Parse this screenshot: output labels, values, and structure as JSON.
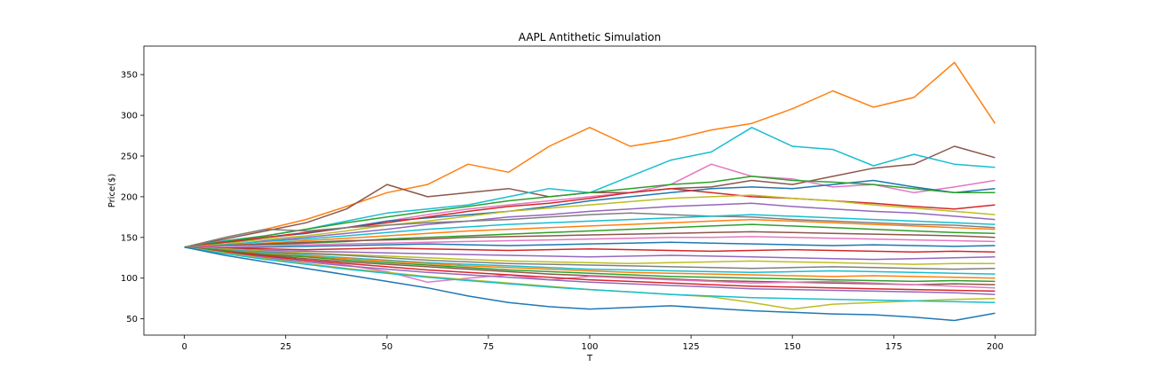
{
  "chart_data": {
    "type": "line",
    "title": "AAPL Antithetic Simulation",
    "xlabel": "T",
    "ylabel": "Price($)",
    "xlim": [
      -10,
      210
    ],
    "ylim": [
      30,
      385
    ],
    "x_ticks": [
      0,
      25,
      50,
      75,
      100,
      125,
      150,
      175,
      200
    ],
    "y_ticks": [
      50,
      100,
      150,
      200,
      250,
      300,
      350
    ],
    "grid": false,
    "legend": "none",
    "colors": [
      "#1f77b4",
      "#ff7f0e",
      "#2ca02c",
      "#d62728",
      "#9467bd",
      "#8c564b",
      "#e377c2",
      "#7f7f7f",
      "#bcbd22",
      "#17becf"
    ],
    "x": [
      0,
      10,
      20,
      30,
      40,
      50,
      60,
      70,
      80,
      90,
      100,
      110,
      120,
      130,
      140,
      150,
      160,
      170,
      180,
      190,
      200
    ],
    "series": [
      {
        "color": "#ff7f0e",
        "values": [
          138,
          150,
          160,
          172,
          188,
          205,
          215,
          240,
          230,
          262,
          285,
          262,
          270,
          282,
          290,
          308,
          330,
          310,
          322,
          365,
          290
        ]
      },
      {
        "color": "#8c564b",
        "values": [
          138,
          148,
          158,
          168,
          185,
          215,
          200,
          205,
          210,
          200,
          205,
          205,
          210,
          212,
          220,
          215,
          225,
          235,
          240,
          262,
          248
        ]
      },
      {
        "color": "#17becf",
        "values": [
          138,
          146,
          152,
          160,
          170,
          180,
          185,
          190,
          200,
          210,
          205,
          225,
          245,
          255,
          285,
          262,
          258,
          238,
          252,
          240,
          236
        ]
      },
      {
        "color": "#e377c2",
        "values": [
          138,
          144,
          150,
          155,
          162,
          170,
          178,
          185,
          190,
          195,
          200,
          205,
          215,
          240,
          225,
          222,
          212,
          215,
          205,
          212,
          220
        ]
      },
      {
        "color": "#1f77b4",
        "values": [
          138,
          142,
          150,
          155,
          162,
          170,
          174,
          178,
          182,
          188,
          195,
          200,
          205,
          210,
          212,
          210,
          215,
          220,
          212,
          205,
          210
        ]
      },
      {
        "color": "#2ca02c",
        "values": [
          138,
          145,
          152,
          160,
          168,
          175,
          182,
          188,
          195,
          200,
          205,
          210,
          215,
          218,
          225,
          220,
          218,
          215,
          210,
          205,
          205
        ]
      },
      {
        "color": "#d62728",
        "values": [
          138,
          144,
          150,
          156,
          162,
          168,
          175,
          182,
          188,
          192,
          198,
          205,
          210,
          205,
          200,
          198,
          195,
          192,
          188,
          185,
          190
        ]
      },
      {
        "color": "#bcbd22",
        "values": [
          138,
          142,
          148,
          152,
          158,
          165,
          170,
          176,
          182,
          186,
          190,
          194,
          198,
          200,
          202,
          198,
          195,
          190,
          186,
          182,
          178
        ]
      },
      {
        "color": "#9467bd",
        "values": [
          138,
          140,
          146,
          150,
          155,
          160,
          166,
          170,
          175,
          178,
          182,
          185,
          188,
          190,
          192,
          188,
          185,
          182,
          180,
          176,
          172
        ]
      },
      {
        "color": "#7f7f7f",
        "values": [
          138,
          150,
          160,
          158,
          162,
          165,
          168,
          170,
          172,
          175,
          178,
          180,
          178,
          176,
          175,
          172,
          170,
          168,
          166,
          165,
          162
        ]
      },
      {
        "color": "#17becf",
        "values": [
          138,
          141,
          145,
          148,
          152,
          156,
          160,
          163,
          166,
          168,
          170,
          172,
          174,
          176,
          178,
          176,
          174,
          172,
          170,
          168,
          166
        ]
      },
      {
        "color": "#ff7f0e",
        "values": [
          138,
          140,
          143,
          146,
          149,
          152,
          155,
          158,
          160,
          162,
          164,
          166,
          168,
          170,
          172,
          170,
          168,
          166,
          164,
          162,
          160
        ]
      },
      {
        "color": "#2ca02c",
        "values": [
          138,
          139,
          141,
          143,
          145,
          148,
          150,
          152,
          154,
          156,
          158,
          160,
          162,
          164,
          166,
          164,
          162,
          160,
          158,
          156,
          155
        ]
      },
      {
        "color": "#8c564b",
        "values": [
          138,
          140,
          142,
          144,
          146,
          147,
          148,
          150,
          151,
          152,
          153,
          154,
          155,
          156,
          157,
          156,
          155,
          154,
          153,
          152,
          150
        ]
      },
      {
        "color": "#e377c2",
        "values": [
          138,
          139,
          140,
          141,
          142,
          143,
          144,
          145,
          146,
          147,
          148,
          149,
          150,
          150,
          151,
          150,
          149,
          148,
          147,
          146,
          145
        ]
      },
      {
        "color": "#1f77b4",
        "values": [
          138,
          137,
          138,
          139,
          140,
          141,
          142,
          141,
          140,
          141,
          142,
          143,
          144,
          143,
          142,
          141,
          140,
          141,
          140,
          139,
          140
        ]
      },
      {
        "color": "#d62728",
        "values": [
          138,
          137,
          136,
          135,
          136,
          137,
          136,
          135,
          134,
          135,
          136,
          135,
          134,
          133,
          134,
          135,
          134,
          133,
          132,
          133,
          132
        ]
      },
      {
        "color": "#9467bd",
        "values": [
          138,
          136,
          134,
          133,
          132,
          131,
          130,
          129,
          128,
          127,
          126,
          127,
          128,
          127,
          126,
          125,
          124,
          123,
          124,
          125,
          126
        ]
      },
      {
        "color": "#bcbd22",
        "values": [
          138,
          136,
          133,
          131,
          129,
          127,
          125,
          123,
          121,
          120,
          119,
          118,
          119,
          120,
          121,
          120,
          119,
          118,
          117,
          118,
          118
        ]
      },
      {
        "color": "#7f7f7f",
        "values": [
          138,
          135,
          132,
          130,
          128,
          125,
          122,
          120,
          118,
          117,
          116,
          115,
          114,
          113,
          112,
          113,
          114,
          113,
          112,
          111,
          112
        ]
      },
      {
        "color": "#17becf",
        "values": [
          138,
          135,
          131,
          128,
          125,
          122,
          119,
          117,
          115,
          113,
          111,
          110,
          109,
          108,
          107,
          108,
          109,
          108,
          107,
          106,
          105
        ]
      },
      {
        "color": "#ff7f0e",
        "values": [
          138,
          134,
          130,
          127,
          124,
          121,
          118,
          115,
          113,
          111,
          109,
          107,
          106,
          105,
          104,
          103,
          102,
          103,
          102,
          101,
          100
        ]
      },
      {
        "color": "#2ca02c",
        "values": [
          138,
          134,
          129,
          126,
          122,
          119,
          116,
          113,
          110,
          108,
          106,
          104,
          102,
          101,
          100,
          99,
          98,
          97,
          96,
          97,
          96
        ]
      },
      {
        "color": "#8c564b",
        "values": [
          138,
          133,
          128,
          124,
          120,
          117,
          114,
          111,
          108,
          105,
          103,
          101,
          99,
          97,
          96,
          95,
          94,
          93,
          92,
          93,
          92
        ]
      },
      {
        "color": "#e377c2",
        "values": [
          138,
          132,
          126,
          122,
          116,
          108,
          95,
          100,
          104,
          98,
          102,
          100,
          98,
          96,
          94,
          95,
          96,
          94,
          92,
          90,
          88
        ]
      },
      {
        "color": "#d62728",
        "values": [
          138,
          132,
          127,
          122,
          118,
          114,
          110,
          107,
          104,
          101,
          98,
          96,
          94,
          92,
          90,
          89,
          88,
          87,
          86,
          85,
          84
        ]
      },
      {
        "color": "#9467bd",
        "values": [
          138,
          131,
          125,
          120,
          115,
          111,
          107,
          104,
          101,
          98,
          95,
          93,
          91,
          89,
          87,
          86,
          85,
          84,
          83,
          82,
          80
        ]
      },
      {
        "color": "#bcbd22",
        "values": [
          138,
          131,
          124,
          118,
          112,
          107,
          102,
          98,
          94,
          90,
          86,
          83,
          80,
          77,
          70,
          62,
          68,
          70,
          72,
          74,
          75
        ]
      },
      {
        "color": "#17becf",
        "values": [
          138,
          130,
          123,
          117,
          111,
          106,
          101,
          97,
          93,
          89,
          86,
          83,
          80,
          78,
          76,
          75,
          74,
          73,
          72,
          71,
          70
        ]
      },
      {
        "color": "#1f77b4",
        "values": [
          138,
          128,
          120,
          112,
          104,
          96,
          88,
          78,
          70,
          65,
          62,
          64,
          66,
          63,
          60,
          58,
          56,
          55,
          52,
          48,
          57
        ]
      }
    ]
  }
}
